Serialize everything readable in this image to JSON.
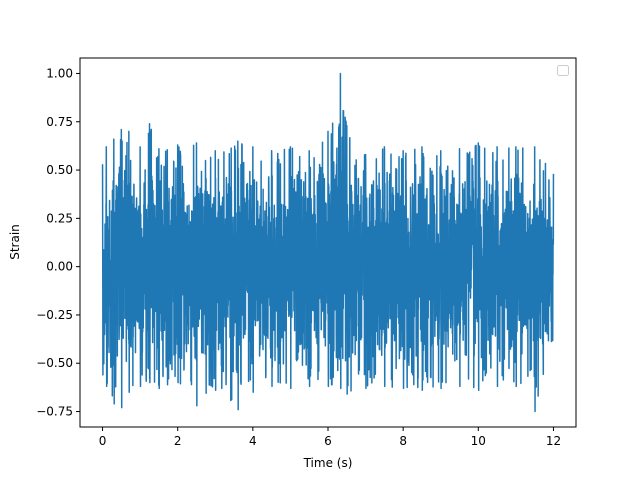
{
  "chart_data": {
    "type": "line",
    "title": "",
    "xlabel": "Time (s)",
    "ylabel": "Strain",
    "xlim": [
      -0.6,
      12.6
    ],
    "ylim": [
      -0.83,
      1.08
    ],
    "x_ticks": [
      0,
      2,
      4,
      6,
      8,
      10,
      12
    ],
    "x_tick_labels": [
      "0",
      "2",
      "4",
      "6",
      "8",
      "10",
      "12"
    ],
    "y_ticks": [
      -0.75,
      -0.5,
      -0.25,
      0.0,
      0.25,
      0.5,
      0.75,
      1.0
    ],
    "y_tick_labels": [
      "−0.75",
      "−0.50",
      "−0.25",
      "0.00",
      "0.25",
      "0.50",
      "0.75",
      "1.00"
    ],
    "grid": false,
    "legend": {
      "placement": "upper right",
      "entries": []
    },
    "series": [
      {
        "color": "#1f77b4",
        "x_range": [
          0,
          12
        ],
        "peak": {
          "x": 6.33,
          "y": 1.0
        },
        "envelope_x": [
          0.0,
          0.1,
          0.3,
          0.5,
          0.7,
          1.0,
          1.25,
          1.5,
          2.0,
          2.5,
          3.0,
          3.6,
          4.0,
          4.5,
          5.0,
          5.5,
          6.0,
          6.33,
          6.5,
          7.0,
          7.5,
          8.0,
          8.5,
          9.0,
          9.5,
          10.0,
          10.5,
          11.0,
          11.5,
          12.0
        ],
        "envelope_max": [
          0.53,
          0.62,
          0.66,
          0.71,
          0.7,
          0.62,
          0.74,
          0.61,
          0.63,
          0.64,
          0.6,
          0.65,
          0.62,
          0.6,
          0.62,
          0.6,
          0.7,
          1.0,
          0.73,
          0.58,
          0.62,
          0.6,
          0.62,
          0.6,
          0.61,
          0.64,
          0.62,
          0.62,
          0.62,
          0.48
        ],
        "envelope_min": [
          -0.56,
          -0.62,
          -0.71,
          -0.73,
          -0.65,
          -0.62,
          -0.6,
          -0.63,
          -0.6,
          -0.72,
          -0.64,
          -0.74,
          -0.65,
          -0.62,
          -0.63,
          -0.62,
          -0.62,
          -0.63,
          -0.66,
          -0.63,
          -0.62,
          -0.63,
          -0.64,
          -0.63,
          -0.62,
          -0.64,
          -0.62,
          -0.62,
          -0.75,
          -0.48
        ]
      }
    ]
  }
}
